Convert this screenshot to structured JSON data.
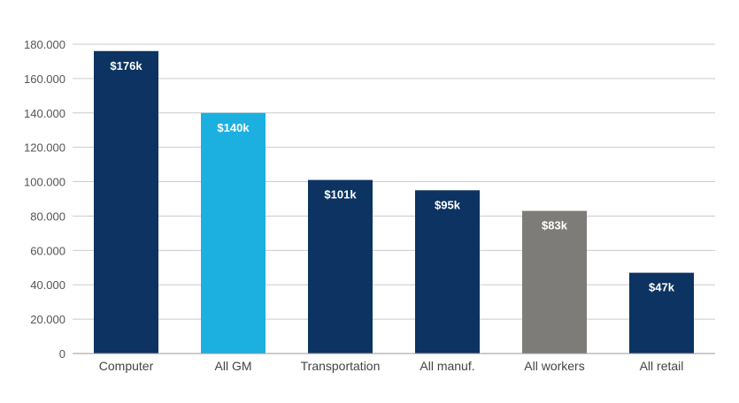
{
  "chart_data": {
    "type": "bar",
    "categories": [
      "Computer",
      "All GM",
      "Transportation",
      "All manuf.",
      "All workers",
      "All retail"
    ],
    "values": [
      176000,
      140000,
      101000,
      95000,
      83000,
      47000
    ],
    "data_labels": [
      "$176k",
      "$140k",
      "$101k",
      "$95k",
      "$83k",
      "$47k"
    ],
    "colors": [
      "#0c3361",
      "#1cb0e0",
      "#0c3361",
      "#0c3361",
      "#7d7c78",
      "#0c3361"
    ],
    "ylim": [
      0,
      180000
    ],
    "yticks": [
      0,
      20000,
      40000,
      60000,
      80000,
      100000,
      120000,
      140000,
      160000,
      180000
    ],
    "ytick_labels": [
      "0",
      "20.000",
      "40.000",
      "60.000",
      "80.000",
      "100.000",
      "120.000",
      "140.000",
      "160.000",
      "180.000"
    ],
    "grid": true,
    "legend": false,
    "title": "",
    "xlabel": "",
    "ylabel": ""
  }
}
